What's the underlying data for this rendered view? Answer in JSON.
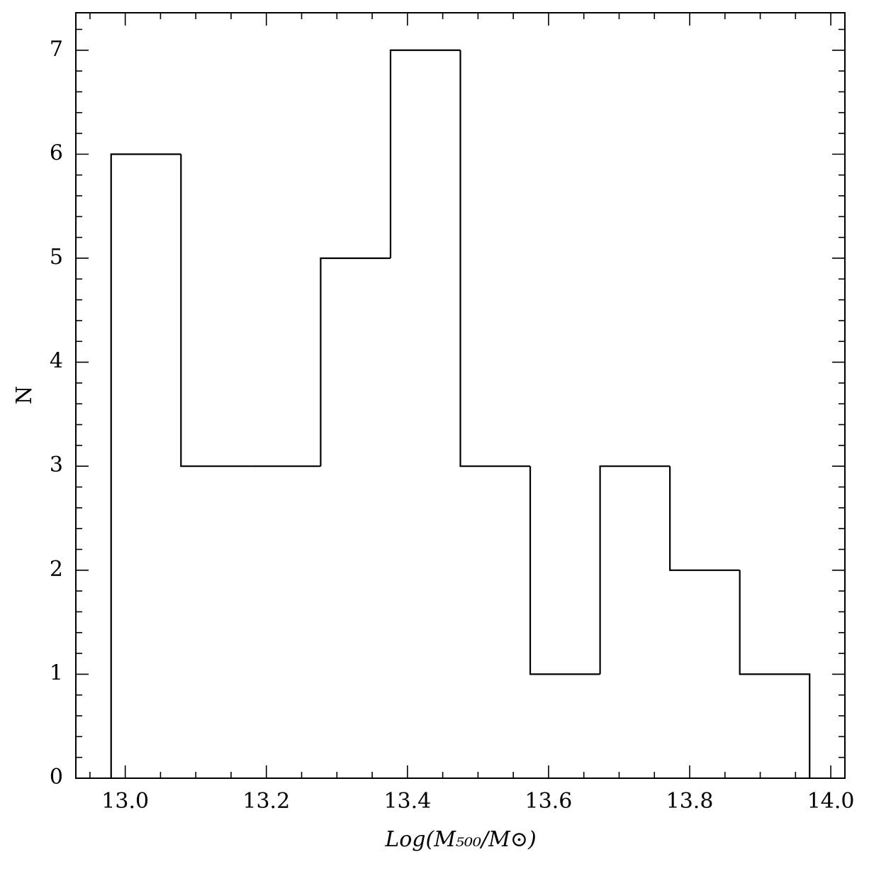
{
  "chart_data": {
    "type": "histogram",
    "xlabel": "Log(M₅₀₀/M⊙)",
    "ylabel": "N",
    "bins": [
      12.98,
      13.079,
      13.178,
      13.277,
      13.376,
      13.475,
      13.574,
      13.673,
      13.772,
      13.871,
      13.97
    ],
    "values": [
      6,
      3,
      3,
      5,
      7,
      3,
      1,
      3,
      2,
      1
    ],
    "color": "#000000",
    "xlim": [
      12.93,
      14.02
    ],
    "ylim": [
      0,
      7.36
    ],
    "xticks": [
      {
        "value": 13,
        "label": "13.0"
      },
      13.2,
      13.4,
      13.6,
      13.8,
      {
        "value": 14,
        "label": "14.0"
      }
    ],
    "yticks": [
      0,
      1,
      2,
      3,
      4,
      5,
      6,
      7
    ],
    "minor_ticks": {
      "x": 4,
      "y": 5
    }
  }
}
